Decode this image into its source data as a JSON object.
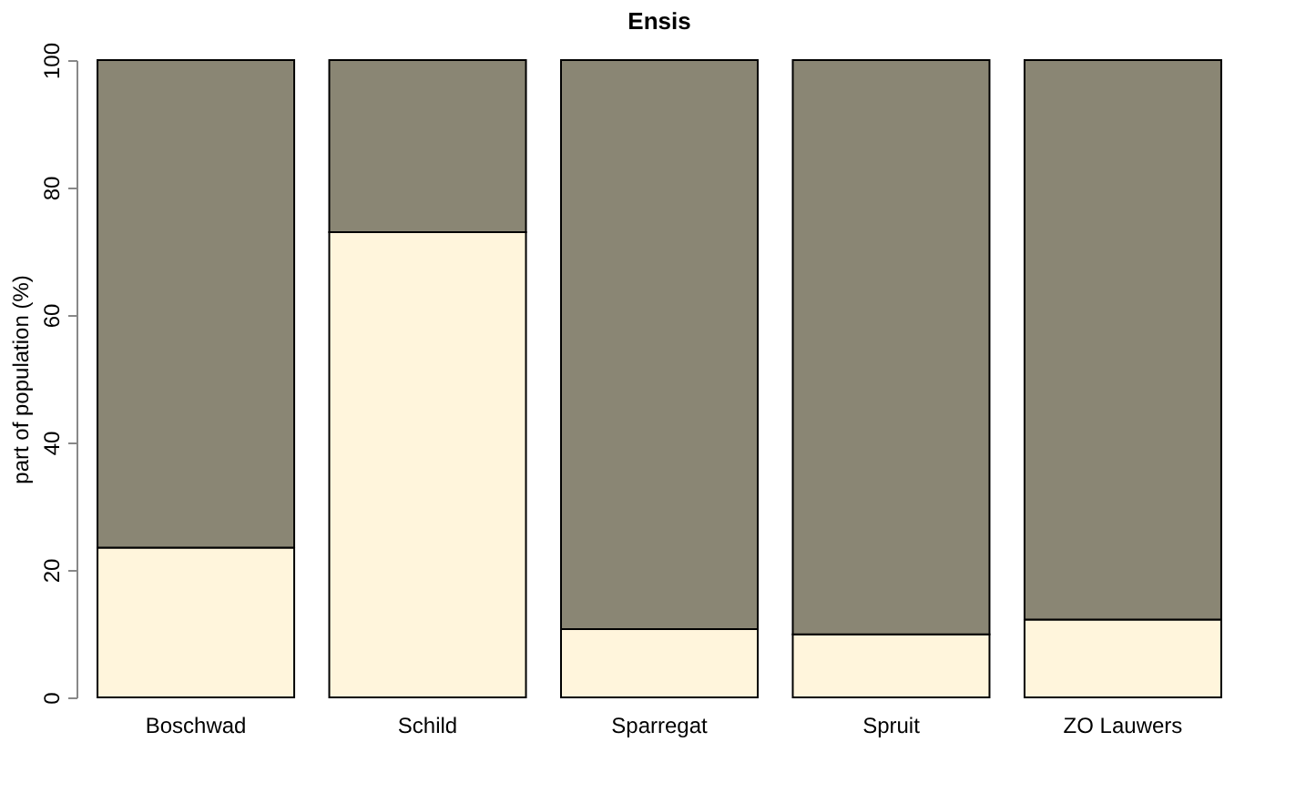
{
  "chart_data": {
    "type": "bar",
    "title": "Ensis",
    "ylabel": "part of population (%)",
    "categories": [
      "Boschwad",
      "Schild",
      "Sparregat",
      "Spruit",
      "ZO Lauwers"
    ],
    "stacked": true,
    "series": [
      {
        "color": "#fff5dc",
        "values": [
          23.5,
          73,
          10.7,
          9.9,
          12.2
        ]
      },
      {
        "color": "#8a8674",
        "values": [
          76.5,
          27,
          89.3,
          90.1,
          87.8
        ]
      }
    ],
    "ylim": [
      0,
      100
    ],
    "yticks": [
      0,
      20,
      40,
      60,
      80,
      100
    ],
    "grid": false
  }
}
